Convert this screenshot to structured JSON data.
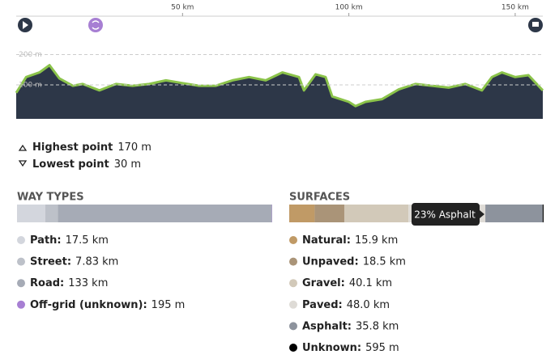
{
  "chart_data": {
    "type": "area",
    "x": [
      0,
      3,
      7,
      10,
      13,
      17,
      20,
      25,
      30,
      35,
      40,
      45,
      50,
      55,
      60,
      65,
      70,
      75,
      80,
      85,
      86.5,
      90,
      93,
      95,
      100,
      102,
      105,
      110,
      115,
      120,
      125,
      130,
      135,
      140,
      143,
      146,
      150,
      154,
      158.3
    ],
    "series": [
      {
        "color": "#2d3748",
        "line_color": "#8bc34a",
        "values": [
          74,
          126,
          141,
          165,
          121,
          97,
          103,
          82,
          103,
          97,
          103,
          115,
          106,
          97,
          97,
          115,
          126,
          115,
          141,
          126,
          82,
          135,
          126,
          62,
          44,
          30,
          44,
          53,
          85,
          103,
          97,
          91,
          103,
          82,
          126,
          141,
          126,
          132,
          82
        ]
      }
    ],
    "xlim": [
      0,
      158.3
    ],
    "xticks": [
      {
        "value": 50,
        "label": "50 km"
      },
      {
        "value": 100,
        "label": "100 km"
      },
      {
        "value": 150,
        "label": "150 km"
      }
    ],
    "ylim": [
      -12,
      220
    ],
    "yticks": [
      {
        "value": 100,
        "label": "100 m"
      },
      {
        "value": 200,
        "label": "200 m"
      }
    ],
    "grid": true
  },
  "stats": [
    {
      "label": "Highest point",
      "value": "170 m"
    },
    {
      "label": "Lowest point",
      "value": "30 m"
    }
  ],
  "way_types": {
    "title": "WAY TYPES",
    "items": [
      {
        "name": "Path:",
        "value": 17.5,
        "label": "17.5 km",
        "color": "#d3d6dd"
      },
      {
        "name": "Street:",
        "value": 7.83,
        "label": "7.83 km",
        "color": "#bdc1c9"
      },
      {
        "name": "Road:",
        "value": 133,
        "label": "133 km",
        "color": "#a6abb6"
      },
      {
        "name": "Off-grid (unknown):",
        "value": 0.195,
        "label": "195 m",
        "color": "#a77fd3"
      }
    ]
  },
  "surfaces": {
    "title": "SURFACES",
    "tooltip": "23% Asphalt",
    "items": [
      {
        "name": "Natural:",
        "value": 15.9,
        "label": "15.9 km",
        "color": "#c09a66"
      },
      {
        "name": "Unpaved:",
        "value": 18.5,
        "label": "18.5 km",
        "color": "#aa9478"
      },
      {
        "name": "Gravel:",
        "value": 40.1,
        "label": "40.1 km",
        "color": "#d2c9b9"
      },
      {
        "name": "Paved:",
        "value": 48.0,
        "label": "48.0 km",
        "color": "#dedbd6"
      },
      {
        "name": "Asphalt:",
        "value": 35.8,
        "label": "35.8 km",
        "color": "#8d939d"
      },
      {
        "name": "Unknown:",
        "value": 0.595,
        "label": "595 m",
        "color": "#000000"
      }
    ]
  }
}
